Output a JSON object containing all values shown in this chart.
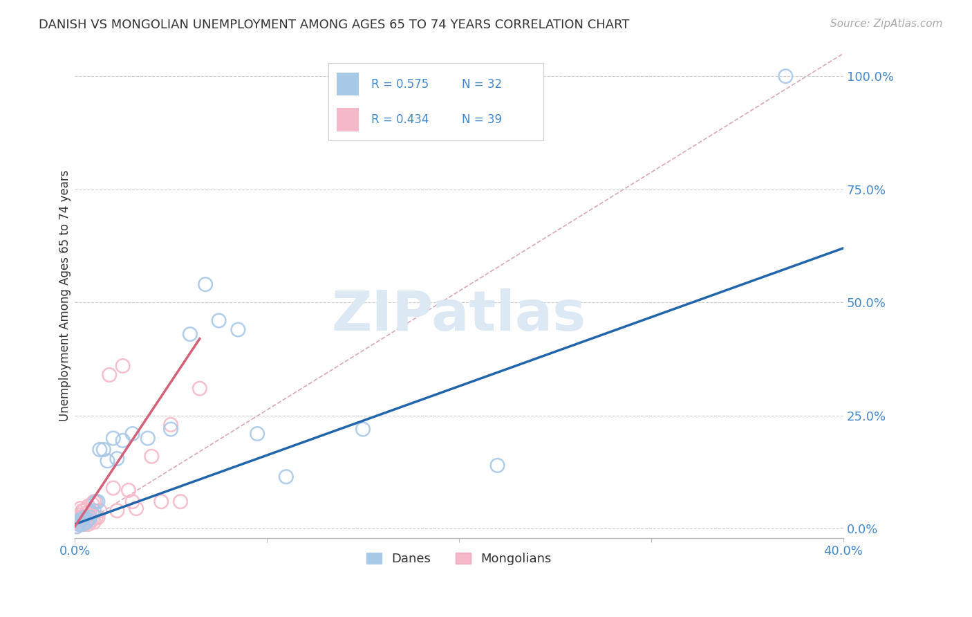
{
  "title": "DANISH VS MONGOLIAN UNEMPLOYMENT AMONG AGES 65 TO 74 YEARS CORRELATION CHART",
  "source": "Source: ZipAtlas.com",
  "ylabel": "Unemployment Among Ages 65 to 74 years",
  "xlim": [
    0.0,
    0.4
  ],
  "ylim": [
    -0.02,
    1.05
  ],
  "legend_r_blue": "R = 0.575",
  "legend_n_blue": "N = 32",
  "legend_r_pink": "R = 0.434",
  "legend_n_pink": "N = 39",
  "blue_scatter_color": "#a8c8e8",
  "pink_scatter_color": "#f4b8c8",
  "blue_line_color": "#2166ac",
  "pink_line_color": "#d4607a",
  "diagonal_color": "#d8a8b8",
  "legend_blue_fill": "#a8c8e8",
  "legend_pink_fill": "#f4b8c8",
  "text_blue": "#4488cc",
  "text_dark": "#333333",
  "tick_color": "#4488cc",
  "watermark": "ZIPatlas",
  "background_color": "#ffffff",
  "grid_color": "#cccccc",
  "blue_scatter_x": [
    0.001,
    0.002,
    0.003,
    0.003,
    0.004,
    0.004,
    0.005,
    0.006,
    0.007,
    0.008,
    0.009,
    0.01,
    0.011,
    0.012,
    0.013,
    0.015,
    0.017,
    0.02,
    0.022,
    0.025,
    0.03,
    0.038,
    0.05,
    0.06,
    0.068,
    0.075,
    0.085,
    0.095,
    0.11,
    0.15,
    0.22,
    0.37
  ],
  "blue_scatter_y": [
    0.005,
    0.01,
    0.015,
    0.02,
    0.01,
    0.02,
    0.025,
    0.015,
    0.02,
    0.025,
    0.035,
    0.04,
    0.06,
    0.06,
    0.175,
    0.175,
    0.15,
    0.2,
    0.155,
    0.195,
    0.21,
    0.2,
    0.22,
    0.43,
    0.54,
    0.46,
    0.44,
    0.21,
    0.115,
    0.22,
    0.14,
    1.0
  ],
  "pink_scatter_x": [
    0.001,
    0.001,
    0.001,
    0.002,
    0.002,
    0.002,
    0.003,
    0.003,
    0.003,
    0.004,
    0.004,
    0.005,
    0.005,
    0.005,
    0.006,
    0.006,
    0.007,
    0.007,
    0.008,
    0.008,
    0.009,
    0.009,
    0.01,
    0.01,
    0.011,
    0.012,
    0.013,
    0.018,
    0.02,
    0.022,
    0.025,
    0.028,
    0.03,
    0.032,
    0.04,
    0.045,
    0.05,
    0.055,
    0.065
  ],
  "pink_scatter_y": [
    0.005,
    0.015,
    0.025,
    0.01,
    0.02,
    0.03,
    0.01,
    0.025,
    0.045,
    0.015,
    0.04,
    0.01,
    0.025,
    0.04,
    0.02,
    0.035,
    0.01,
    0.05,
    0.015,
    0.04,
    0.02,
    0.055,
    0.015,
    0.06,
    0.025,
    0.025,
    0.04,
    0.34,
    0.09,
    0.04,
    0.36,
    0.085,
    0.06,
    0.045,
    0.16,
    0.06,
    0.23,
    0.06,
    0.31
  ],
  "blue_line_x": [
    0.0,
    0.4
  ],
  "blue_line_y": [
    0.01,
    0.62
  ],
  "pink_line_x": [
    0.0,
    0.065
  ],
  "pink_line_y": [
    0.005,
    0.42
  ],
  "diag_line_x": [
    0.0,
    0.4
  ],
  "diag_line_y": [
    0.0,
    1.05
  ]
}
